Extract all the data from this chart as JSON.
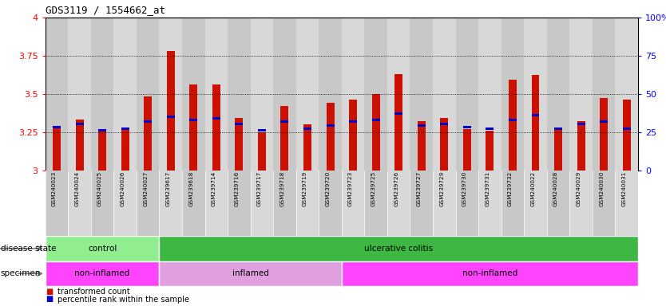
{
  "title": "GDS3119 / 1554662_at",
  "samples": [
    "GSM240023",
    "GSM240024",
    "GSM240025",
    "GSM240026",
    "GSM240027",
    "GSM239617",
    "GSM239618",
    "GSM239714",
    "GSM239716",
    "GSM239717",
    "GSM239718",
    "GSM239719",
    "GSM239720",
    "GSM239723",
    "GSM239725",
    "GSM239726",
    "GSM239727",
    "GSM239729",
    "GSM239730",
    "GSM239731",
    "GSM239732",
    "GSM240022",
    "GSM240028",
    "GSM240029",
    "GSM240030",
    "GSM240031"
  ],
  "red_values": [
    3.28,
    3.33,
    3.27,
    3.27,
    3.48,
    3.78,
    3.56,
    3.56,
    3.34,
    3.25,
    3.42,
    3.3,
    3.44,
    3.46,
    3.5,
    3.63,
    3.32,
    3.34,
    3.27,
    3.26,
    3.59,
    3.62,
    3.27,
    3.32,
    3.47,
    3.46
  ],
  "blue_percentiles": [
    28,
    30,
    26,
    27,
    32,
    35,
    33,
    34,
    30,
    26,
    32,
    27,
    29,
    32,
    33,
    37,
    29,
    30,
    28,
    27,
    33,
    36,
    27,
    30,
    32,
    27
  ],
  "ymin": 3.0,
  "ymax": 4.0,
  "yticks_left": [
    3.0,
    3.25,
    3.5,
    3.75,
    4.0
  ],
  "ytick_labels_left": [
    "3",
    "3.25",
    "3.5",
    "3.75",
    "4"
  ],
  "yticks_right": [
    0,
    25,
    50,
    75,
    100
  ],
  "ytick_labels_right": [
    "0",
    "25",
    "50",
    "75",
    "100%"
  ],
  "disease_state": [
    {
      "label": "control",
      "start": 0,
      "end": 5,
      "color": "#90EE90"
    },
    {
      "label": "ulcerative colitis",
      "start": 5,
      "end": 26,
      "color": "#3CB843"
    }
  ],
  "specimen": [
    {
      "label": "non-inflamed",
      "start": 0,
      "end": 5,
      "color": "#FF44FF"
    },
    {
      "label": "inflamed",
      "start": 5,
      "end": 13,
      "color": "#E0A0E0"
    },
    {
      "label": "non-inflamed",
      "start": 13,
      "end": 26,
      "color": "#FF44FF"
    }
  ],
  "bar_color": "#CC1100",
  "blue_color": "#0000CC",
  "sample_bg_odd": "#C8C8C8",
  "sample_bg_even": "#D8D8D8",
  "plot_bg": "#FFFFFF",
  "legend_red_label": "transformed count",
  "legend_blue_label": "percentile rank within the sample"
}
